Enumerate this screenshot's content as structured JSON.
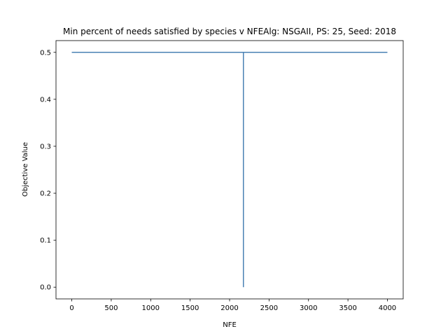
{
  "chart_data": {
    "type": "line",
    "title": "Min percent of needs satisfied by species v NFEAlg: NSGAII, PS: 25, Seed: 2018",
    "xlabel": "NFE",
    "ylabel": "Objective Value",
    "xlim": [
      -200,
      4200
    ],
    "ylim": [
      -0.025,
      0.525
    ],
    "xticks": [
      0,
      500,
      1000,
      1500,
      2000,
      2500,
      3000,
      3500,
      4000
    ],
    "yticks": [
      0.0,
      0.1,
      0.2,
      0.3,
      0.4,
      0.5
    ],
    "xtick_labels": [
      "0",
      "500",
      "1000",
      "1500",
      "2000",
      "2500",
      "3000",
      "3500",
      "4000"
    ],
    "ytick_labels": [
      "0.0",
      "0.1",
      "0.2",
      "0.3",
      "0.4",
      "0.5"
    ],
    "grid": false,
    "series": [
      {
        "color": "#4a82b4",
        "x": [
          0,
          2175,
          2175,
          2175,
          4000
        ],
        "y": [
          0.5,
          0.5,
          0.0,
          0.5,
          0.5
        ]
      }
    ]
  }
}
